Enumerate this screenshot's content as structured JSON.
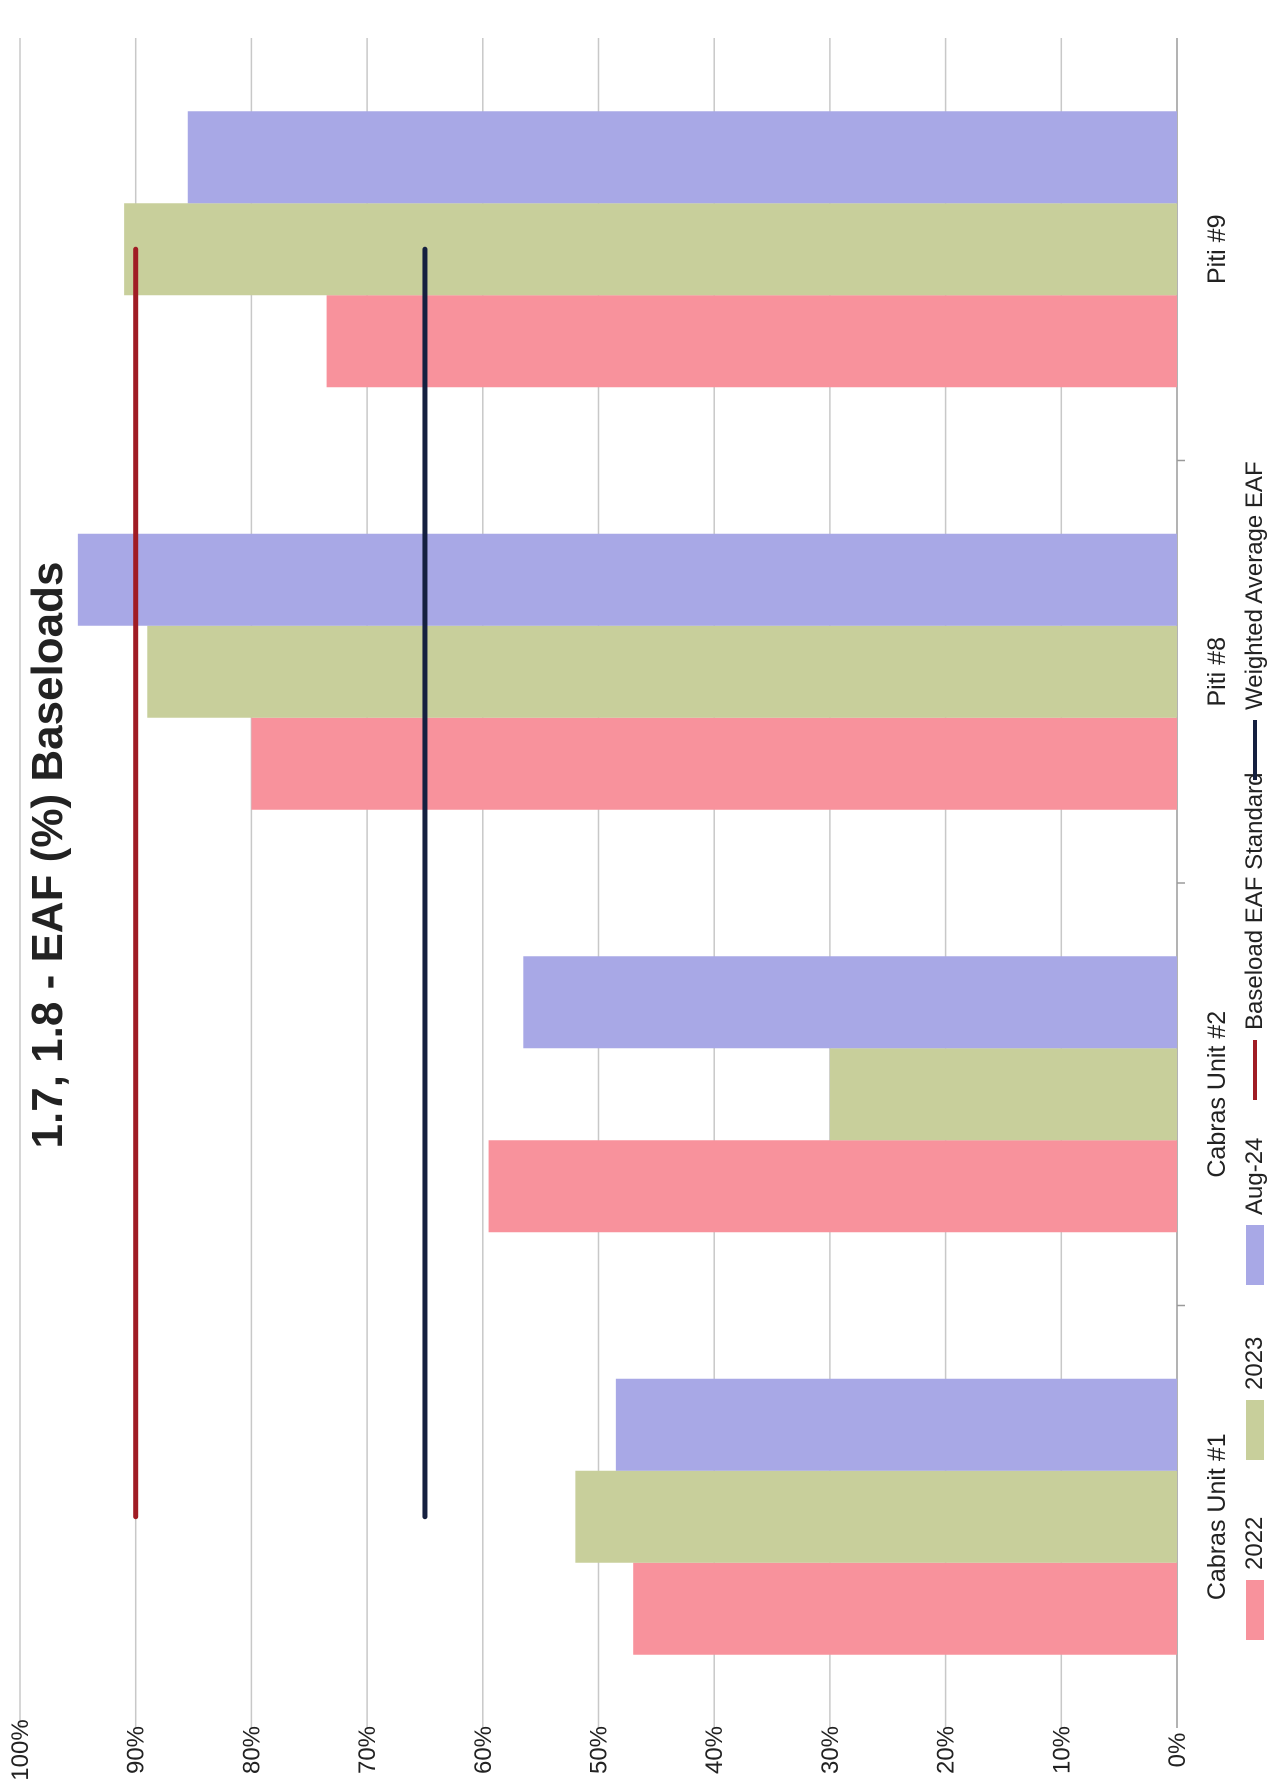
{
  "chart_data": {
    "type": "bar",
    "title": "1.7, 1.8 - EAF (%) Baseloads",
    "categories": [
      "Cabras Unit #1",
      "Cabras Unit #2",
      "Piti #8",
      "Piti #9"
    ],
    "series": [
      {
        "name": "2022",
        "color": "#f8929c",
        "values": [
          47,
          59.5,
          80,
          73.5
        ]
      },
      {
        "name": "2023",
        "color": "#c8cf9b",
        "values": [
          52,
          30,
          89,
          91
        ]
      },
      {
        "name": "Aug-24",
        "color": "#a8a8e6",
        "values": [
          48.5,
          56.5,
          95,
          85.5
        ]
      }
    ],
    "lines": [
      {
        "name": "Baseload EAF Standard",
        "color": "#a01c24",
        "value": 90
      },
      {
        "name": "Weighted Average EAF",
        "color": "#152040",
        "value": 65
      }
    ],
    "yticks": [
      "0%",
      "10%",
      "20%",
      "30%",
      "40%",
      "50%",
      "60%",
      "70%",
      "80%",
      "90%",
      "100%"
    ],
    "ylim": [
      0,
      100
    ],
    "grid": true,
    "legend": "bottom"
  }
}
